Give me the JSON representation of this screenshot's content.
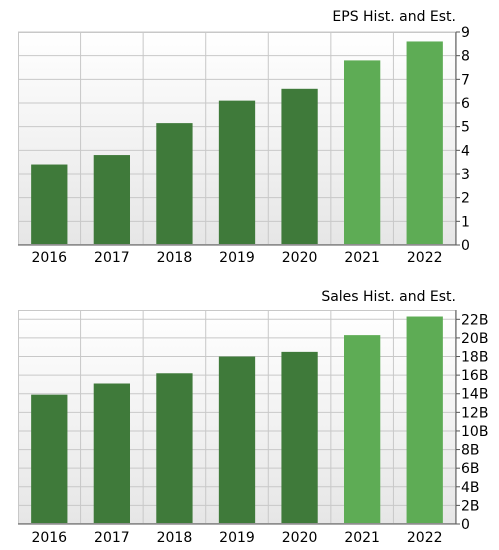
{
  "colors": {
    "historical": "#3f7a3a",
    "estimate": "#5eac55",
    "plot_bg_top": "#ffffff",
    "plot_bg_bottom": "#e6e6e6",
    "grid": "#c8c8c8",
    "axis": "#555555"
  },
  "chart_data": [
    {
      "type": "bar",
      "title": "EPS Hist. and Est.",
      "categories": [
        "2016",
        "2017",
        "2018",
        "2019",
        "2020",
        "2021",
        "2022"
      ],
      "values": [
        3.4,
        3.8,
        5.15,
        6.1,
        6.6,
        7.8,
        8.6
      ],
      "estimate_from_index": 5,
      "ylim": [
        0,
        9
      ],
      "yticks": [
        0,
        1,
        2,
        3,
        4,
        5,
        6,
        7,
        8,
        9
      ],
      "ytick_labels": [
        "0",
        "1",
        "2",
        "3",
        "4",
        "5",
        "6",
        "7",
        "8",
        "9"
      ],
      "axis_side": "right",
      "grid": true
    },
    {
      "type": "bar",
      "title": "Sales Hist. and Est.",
      "categories": [
        "2016",
        "2017",
        "2018",
        "2019",
        "2020",
        "2021",
        "2022"
      ],
      "values": [
        13.9,
        15.1,
        16.2,
        18.0,
        18.5,
        20.3,
        22.3
      ],
      "estimate_from_index": 5,
      "ylim": [
        0,
        23
      ],
      "yticks": [
        0,
        2,
        4,
        6,
        8,
        10,
        12,
        14,
        16,
        18,
        20,
        22
      ],
      "ytick_labels": [
        "0",
        "2B",
        "4B",
        "6B",
        "8B",
        "10B",
        "12B",
        "14B",
        "16B",
        "18B",
        "20B",
        "22B"
      ],
      "axis_side": "right",
      "grid": true
    }
  ]
}
